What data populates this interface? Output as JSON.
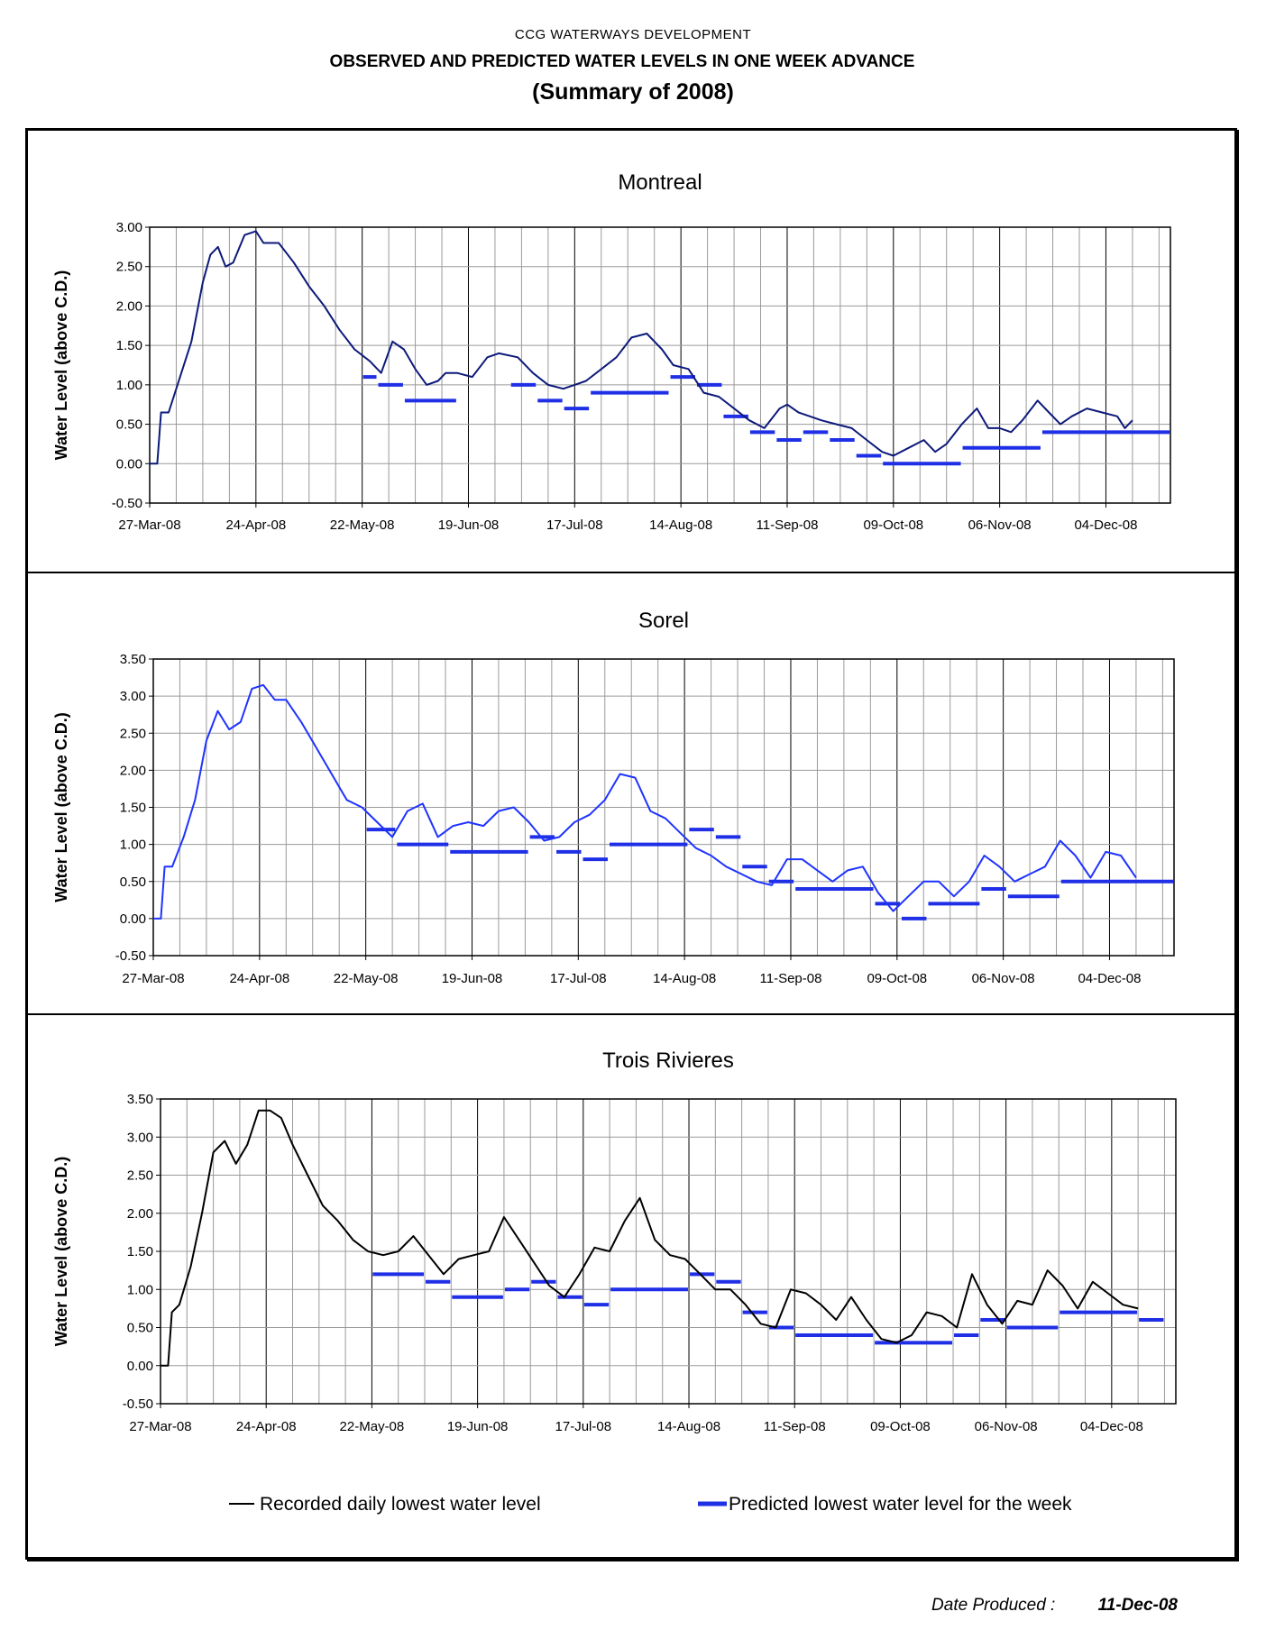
{
  "header": {
    "org": "CCG  WATERWAYS DEVELOPMENT",
    "title": "OBSERVED AND PREDICTED WATER LEVELS IN ONE WEEK ADVANCE",
    "subtitle": "(Summary of 2008)"
  },
  "legend": {
    "observed_label": "Recorded daily lowest water level",
    "predicted_label": "Predicted lowest water level for the week"
  },
  "footer": {
    "date_label": "Date Produced :",
    "date_value": "11-Dec-08"
  },
  "colors": {
    "montreal_line": "#0d1a7a",
    "sorel_line": "#1f33ff",
    "trois_line": "#000000",
    "predicted": "#1f2fe6",
    "grid_major": "#000000",
    "grid_minor": "#9a9a9a"
  },
  "chart_data": [
    {
      "type": "line",
      "title": "Montreal",
      "ylabel": "Water Level (above C.D.)",
      "xlabel": "",
      "x_ticks": [
        "27-Mar-08",
        "24-Apr-08",
        "22-May-08",
        "19-Jun-08",
        "17-Jul-08",
        "14-Aug-08",
        "11-Sep-08",
        "09-Oct-08",
        "06-Nov-08",
        "04-Dec-08"
      ],
      "y_ticks": [
        "3.00",
        "2.50",
        "2.00",
        "1.50",
        "1.00",
        "0.50",
        "0.00",
        "-0.50"
      ],
      "xlim": [
        "27-Mar-08",
        "21-Dec-08"
      ],
      "ylim": [
        -0.5,
        3.0
      ],
      "grid": true,
      "series": [
        {
          "name": "Recorded daily lowest water level",
          "x": [
            "27-Mar-08",
            "29-Mar-08",
            "30-Mar-08",
            "1-Apr-08",
            "4-Apr-08",
            "7-Apr-08",
            "10-Apr-08",
            "12-Apr-08",
            "14-Apr-08",
            "16-Apr-08",
            "18-Apr-08",
            "21-Apr-08",
            "24-Apr-08",
            "26-Apr-08",
            "30-Apr-08",
            "4-May-08",
            "8-May-08",
            "12-May-08",
            "16-May-08",
            "20-May-08",
            "24-May-08",
            "27-May-08",
            "30-May-08",
            "2-Jun-08",
            "5-Jun-08",
            "8-Jun-08",
            "11-Jun-08",
            "13-Jun-08",
            "16-Jun-08",
            "20-Jun-08",
            "24-Jun-08",
            "27-Jun-08",
            "2-Jul-08",
            "6-Jul-08",
            "10-Jul-08",
            "14-Jul-08",
            "17-Jul-08",
            "20-Jul-08",
            "24-Jul-08",
            "28-Jul-08",
            "1-Aug-08",
            "5-Aug-08",
            "9-Aug-08",
            "12-Aug-08",
            "16-Aug-08",
            "20-Aug-08",
            "24-Aug-08",
            "28-Aug-08",
            "1-Sep-08",
            "5-Sep-08",
            "9-Sep-08",
            "11-Sep-08",
            "14-Sep-08",
            "17-Sep-08",
            "20-Sep-08",
            "24-Sep-08",
            "28-Sep-08",
            "2-Oct-08",
            "6-Oct-08",
            "9-Oct-08",
            "13-Oct-08",
            "17-Oct-08",
            "20-Oct-08",
            "23-Oct-08",
            "27-Oct-08",
            "31-Oct-08",
            "3-Nov-08",
            "6-Nov-08",
            "9-Nov-08",
            "12-Nov-08",
            "16-Nov-08",
            "19-Nov-08",
            "22-Nov-08",
            "25-Nov-08",
            "29-Nov-08",
            "3-Dec-08",
            "7-Dec-08",
            "9-Dec-08",
            "11-Dec-08"
          ],
          "y": [
            0.0,
            0.0,
            0.65,
            0.65,
            1.1,
            1.55,
            2.3,
            2.65,
            2.75,
            2.5,
            2.55,
            2.9,
            2.95,
            2.8,
            2.8,
            2.55,
            2.25,
            2.0,
            1.7,
            1.45,
            1.3,
            1.15,
            1.55,
            1.45,
            1.2,
            1.0,
            1.05,
            1.15,
            1.15,
            1.1,
            1.35,
            1.4,
            1.35,
            1.15,
            1.0,
            0.95,
            1.0,
            1.05,
            1.2,
            1.35,
            1.6,
            1.65,
            1.45,
            1.25,
            1.2,
            0.9,
            0.85,
            0.7,
            0.55,
            0.45,
            0.7,
            0.75,
            0.65,
            0.6,
            0.55,
            0.5,
            0.45,
            0.3,
            0.15,
            0.1,
            0.2,
            0.3,
            0.15,
            0.25,
            0.5,
            0.7,
            0.45,
            0.45,
            0.4,
            0.55,
            0.8,
            0.65,
            0.5,
            0.6,
            0.7,
            0.65,
            0.6,
            0.45,
            0.55
          ]
        },
        {
          "name": "Predicted lowest water level for the week",
          "segments": [
            {
              "from": "22-May-08",
              "to": "26-May-08",
              "y": 1.1
            },
            {
              "from": "26-May-08",
              "to": "2-Jun-08",
              "y": 1.0
            },
            {
              "from": "2-Jun-08",
              "to": "16-Jun-08",
              "y": 0.8
            },
            {
              "from": "30-Jun-08",
              "to": "7-Jul-08",
              "y": 1.0
            },
            {
              "from": "7-Jul-08",
              "to": "14-Jul-08",
              "y": 0.8
            },
            {
              "from": "14-Jul-08",
              "to": "21-Jul-08",
              "y": 0.7
            },
            {
              "from": "21-Jul-08",
              "to": "11-Aug-08",
              "y": 0.9
            },
            {
              "from": "11-Aug-08",
              "to": "18-Aug-08",
              "y": 1.1
            },
            {
              "from": "18-Aug-08",
              "to": "25-Aug-08",
              "y": 1.0
            },
            {
              "from": "25-Aug-08",
              "to": "1-Sep-08",
              "y": 0.6
            },
            {
              "from": "1-Sep-08",
              "to": "8-Sep-08",
              "y": 0.4
            },
            {
              "from": "8-Sep-08",
              "to": "15-Sep-08",
              "y": 0.3
            },
            {
              "from": "15-Sep-08",
              "to": "22-Sep-08",
              "y": 0.4
            },
            {
              "from": "22-Sep-08",
              "to": "29-Sep-08",
              "y": 0.3
            },
            {
              "from": "29-Sep-08",
              "to": "6-Oct-08",
              "y": 0.1
            },
            {
              "from": "6-Oct-08",
              "to": "27-Oct-08",
              "y": 0.0
            },
            {
              "from": "27-Oct-08",
              "to": "17-Nov-08",
              "y": 0.2
            },
            {
              "from": "17-Nov-08",
              "to": "21-Dec-08",
              "y": 0.4
            }
          ]
        }
      ]
    },
    {
      "type": "line",
      "title": "Sorel",
      "ylabel": "Water Level (above C.D.)",
      "xlabel": "",
      "x_ticks": [
        "27-Mar-08",
        "24-Apr-08",
        "22-May-08",
        "19-Jun-08",
        "17-Jul-08",
        "14-Aug-08",
        "11-Sep-08",
        "09-Oct-08",
        "06-Nov-08",
        "04-Dec-08"
      ],
      "y_ticks": [
        "3.50",
        "3.00",
        "2.50",
        "2.00",
        "1.50",
        "1.00",
        "0.50",
        "0.00",
        "-0.50"
      ],
      "xlim": [
        "27-Mar-08",
        "21-Dec-08"
      ],
      "ylim": [
        -0.5,
        3.5
      ],
      "grid": true,
      "series": [
        {
          "name": "Recorded daily lowest water level",
          "x": [
            "27-Mar-08",
            "29-Mar-08",
            "30-Mar-08",
            "1-Apr-08",
            "4-Apr-08",
            "7-Apr-08",
            "10-Apr-08",
            "13-Apr-08",
            "16-Apr-08",
            "19-Apr-08",
            "22-Apr-08",
            "25-Apr-08",
            "28-Apr-08",
            "1-May-08",
            "5-May-08",
            "9-May-08",
            "13-May-08",
            "17-May-08",
            "21-May-08",
            "25-May-08",
            "29-May-08",
            "2-Jun-08",
            "6-Jun-08",
            "10-Jun-08",
            "14-Jun-08",
            "18-Jun-08",
            "22-Jun-08",
            "26-Jun-08",
            "30-Jun-08",
            "4-Jul-08",
            "8-Jul-08",
            "12-Jul-08",
            "16-Jul-08",
            "20-Jul-08",
            "24-Jul-08",
            "28-Jul-08",
            "1-Aug-08",
            "5-Aug-08",
            "9-Aug-08",
            "13-Aug-08",
            "17-Aug-08",
            "21-Aug-08",
            "25-Aug-08",
            "29-Aug-08",
            "2-Sep-08",
            "6-Sep-08",
            "10-Sep-08",
            "14-Sep-08",
            "18-Sep-08",
            "22-Sep-08",
            "26-Sep-08",
            "30-Sep-08",
            "4-Oct-08",
            "8-Oct-08",
            "12-Oct-08",
            "16-Oct-08",
            "20-Oct-08",
            "24-Oct-08",
            "28-Oct-08",
            "1-Nov-08",
            "5-Nov-08",
            "9-Nov-08",
            "13-Nov-08",
            "17-Nov-08",
            "21-Nov-08",
            "25-Nov-08",
            "29-Nov-08",
            "3-Dec-08",
            "7-Dec-08",
            "11-Dec-08"
          ],
          "y": [
            0.0,
            0.0,
            0.7,
            0.7,
            1.1,
            1.6,
            2.4,
            2.8,
            2.55,
            2.65,
            3.1,
            3.15,
            2.95,
            2.95,
            2.65,
            2.3,
            1.95,
            1.6,
            1.5,
            1.3,
            1.1,
            1.45,
            1.55,
            1.1,
            1.25,
            1.3,
            1.25,
            1.45,
            1.5,
            1.3,
            1.05,
            1.1,
            1.3,
            1.4,
            1.6,
            1.95,
            1.9,
            1.45,
            1.35,
            1.15,
            0.95,
            0.85,
            0.7,
            0.6,
            0.5,
            0.45,
            0.8,
            0.8,
            0.65,
            0.5,
            0.65,
            0.7,
            0.35,
            0.1,
            0.3,
            0.5,
            0.5,
            0.3,
            0.5,
            0.85,
            0.7,
            0.5,
            0.6,
            0.7,
            1.05,
            0.85,
            0.55,
            0.9,
            0.85,
            0.55
          ]
        },
        {
          "name": "Predicted lowest water level for the week",
          "segments": [
            {
              "from": "22-May-08",
              "to": "30-May-08",
              "y": 1.2
            },
            {
              "from": "30-May-08",
              "to": "13-Jun-08",
              "y": 1.0
            },
            {
              "from": "13-Jun-08",
              "to": "4-Jul-08",
              "y": 0.9
            },
            {
              "from": "4-Jul-08",
              "to": "11-Jul-08",
              "y": 1.1
            },
            {
              "from": "11-Jul-08",
              "to": "18-Jul-08",
              "y": 0.9
            },
            {
              "from": "18-Jul-08",
              "to": "25-Jul-08",
              "y": 0.8
            },
            {
              "from": "25-Jul-08",
              "to": "15-Aug-08",
              "y": 1.0
            },
            {
              "from": "15-Aug-08",
              "to": "22-Aug-08",
              "y": 1.2
            },
            {
              "from": "22-Aug-08",
              "to": "29-Aug-08",
              "y": 1.1
            },
            {
              "from": "29-Aug-08",
              "to": "5-Sep-08",
              "y": 0.7
            },
            {
              "from": "5-Sep-08",
              "to": "12-Sep-08",
              "y": 0.5
            },
            {
              "from": "12-Sep-08",
              "to": "3-Oct-08",
              "y": 0.4
            },
            {
              "from": "3-Oct-08",
              "to": "10-Oct-08",
              "y": 0.2
            },
            {
              "from": "10-Oct-08",
              "to": "17-Oct-08",
              "y": 0.0
            },
            {
              "from": "17-Oct-08",
              "to": "31-Oct-08",
              "y": 0.2
            },
            {
              "from": "31-Oct-08",
              "to": "7-Nov-08",
              "y": 0.4
            },
            {
              "from": "7-Nov-08",
              "to": "21-Nov-08",
              "y": 0.3
            },
            {
              "from": "21-Nov-08",
              "to": "21-Dec-08",
              "y": 0.5
            }
          ]
        }
      ]
    },
    {
      "type": "line",
      "title": "Trois Rivieres",
      "ylabel": "Water Level (above C.D.)",
      "xlabel": "",
      "x_ticks": [
        "27-Mar-08",
        "24-Apr-08",
        "22-May-08",
        "19-Jun-08",
        "17-Jul-08",
        "14-Aug-08",
        "11-Sep-08",
        "09-Oct-08",
        "06-Nov-08",
        "04-Dec-08"
      ],
      "y_ticks": [
        "3.50",
        "3.00",
        "2.50",
        "2.00",
        "1.50",
        "1.00",
        "0.50",
        "0.00",
        "-0.50"
      ],
      "xlim": [
        "27-Mar-08",
        "21-Dec-08"
      ],
      "ylim": [
        -0.5,
        3.5
      ],
      "grid": true,
      "series": [
        {
          "name": "Recorded daily lowest water level",
          "x": [
            "27-Mar-08",
            "29-Mar-08",
            "30-Mar-08",
            "1-Apr-08",
            "4-Apr-08",
            "7-Apr-08",
            "10-Apr-08",
            "13-Apr-08",
            "16-Apr-08",
            "19-Apr-08",
            "22-Apr-08",
            "25-Apr-08",
            "28-Apr-08",
            "1-May-08",
            "5-May-08",
            "9-May-08",
            "13-May-08",
            "17-May-08",
            "21-May-08",
            "25-May-08",
            "29-May-08",
            "2-Jun-08",
            "6-Jun-08",
            "10-Jun-08",
            "14-Jun-08",
            "18-Jun-08",
            "22-Jun-08",
            "26-Jun-08",
            "30-Jun-08",
            "4-Jul-08",
            "8-Jul-08",
            "12-Jul-08",
            "16-Jul-08",
            "20-Jul-08",
            "24-Jul-08",
            "28-Jul-08",
            "1-Aug-08",
            "5-Aug-08",
            "9-Aug-08",
            "13-Aug-08",
            "17-Aug-08",
            "21-Aug-08",
            "25-Aug-08",
            "29-Aug-08",
            "2-Sep-08",
            "6-Sep-08",
            "10-Sep-08",
            "14-Sep-08",
            "18-Sep-08",
            "22-Sep-08",
            "26-Sep-08",
            "30-Sep-08",
            "4-Oct-08",
            "8-Oct-08",
            "12-Oct-08",
            "16-Oct-08",
            "20-Oct-08",
            "24-Oct-08",
            "28-Oct-08",
            "1-Nov-08",
            "5-Nov-08",
            "9-Nov-08",
            "13-Nov-08",
            "17-Nov-08",
            "21-Nov-08",
            "25-Nov-08",
            "29-Nov-08",
            "3-Dec-08",
            "7-Dec-08",
            "11-Dec-08"
          ],
          "y": [
            0.0,
            0.0,
            0.7,
            0.8,
            1.3,
            2.0,
            2.8,
            2.95,
            2.65,
            2.9,
            3.35,
            3.35,
            3.25,
            2.9,
            2.5,
            2.1,
            1.9,
            1.65,
            1.5,
            1.45,
            1.5,
            1.7,
            1.45,
            1.2,
            1.4,
            1.45,
            1.5,
            1.95,
            1.65,
            1.35,
            1.05,
            0.9,
            1.2,
            1.55,
            1.5,
            1.9,
            2.2,
            1.65,
            1.45,
            1.4,
            1.2,
            1.0,
            1.0,
            0.8,
            0.55,
            0.5,
            1.0,
            0.95,
            0.8,
            0.6,
            0.9,
            0.6,
            0.35,
            0.3,
            0.4,
            0.7,
            0.65,
            0.5,
            1.2,
            0.8,
            0.55,
            0.85,
            0.8,
            1.25,
            1.05,
            0.75,
            1.1,
            0.95,
            0.8,
            0.75
          ]
        },
        {
          "name": "Predicted lowest water level for the week",
          "segments": [
            {
              "from": "22-May-08",
              "to": "5-Jun-08",
              "y": 1.2
            },
            {
              "from": "5-Jun-08",
              "to": "12-Jun-08",
              "y": 1.1
            },
            {
              "from": "12-Jun-08",
              "to": "26-Jun-08",
              "y": 0.9
            },
            {
              "from": "26-Jun-08",
              "to": "3-Jul-08",
              "y": 1.0
            },
            {
              "from": "3-Jul-08",
              "to": "10-Jul-08",
              "y": 1.1
            },
            {
              "from": "10-Jul-08",
              "to": "17-Jul-08",
              "y": 0.9
            },
            {
              "from": "17-Jul-08",
              "to": "24-Jul-08",
              "y": 0.8
            },
            {
              "from": "24-Jul-08",
              "to": "14-Aug-08",
              "y": 1.0
            },
            {
              "from": "14-Aug-08",
              "to": "21-Aug-08",
              "y": 1.2
            },
            {
              "from": "21-Aug-08",
              "to": "28-Aug-08",
              "y": 1.1
            },
            {
              "from": "28-Aug-08",
              "to": "4-Sep-08",
              "y": 0.7
            },
            {
              "from": "4-Sep-08",
              "to": "11-Sep-08",
              "y": 0.5
            },
            {
              "from": "11-Sep-08",
              "to": "2-Oct-08",
              "y": 0.4
            },
            {
              "from": "2-Oct-08",
              "to": "23-Oct-08",
              "y": 0.3
            },
            {
              "from": "23-Oct-08",
              "to": "30-Oct-08",
              "y": 0.4
            },
            {
              "from": "30-Oct-08",
              "to": "6-Nov-08",
              "y": 0.6
            },
            {
              "from": "6-Nov-08",
              "to": "20-Nov-08",
              "y": 0.5
            },
            {
              "from": "20-Nov-08",
              "to": "11-Dec-08",
              "y": 0.7
            },
            {
              "from": "11-Dec-08",
              "to": "18-Dec-08",
              "y": 0.6
            }
          ]
        }
      ]
    }
  ]
}
